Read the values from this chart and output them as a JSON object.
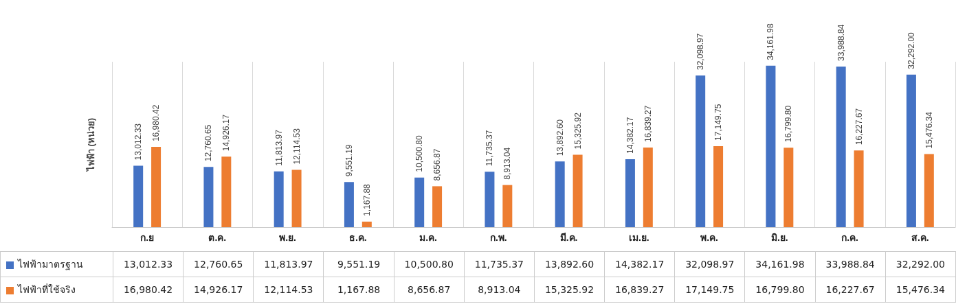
{
  "chart_data": {
    "type": "bar",
    "ylabel": "ไฟฟ้า (หน่วย)",
    "categories": [
      "ก.ย",
      "ต.ค.",
      "พ.ย.",
      "ธ.ค.",
      "ม.ค.",
      "ก.พ.",
      "มี.ค.",
      "เม.ย.",
      "พ.ค.",
      "มิ.ย.",
      "ก.ค.",
      "ส.ค."
    ],
    "series": [
      {
        "name": "ไฟฟ้ามาตรฐาน",
        "color": "#4472c4",
        "values": [
          13012.33,
          12760.65,
          11813.97,
          9551.19,
          10500.8,
          11735.37,
          13892.6,
          14382.17,
          32098.97,
          34161.98,
          33988.84,
          32292.0
        ],
        "value_labels": [
          "13,012.33",
          "12,760.65",
          "11,813.97",
          "9,551.19",
          "10,500.80",
          "11,735.37",
          "13,892.60",
          "14,382.17",
          "32,098.97",
          "34,161.98",
          "33,988.84",
          "32,292.00"
        ]
      },
      {
        "name": "ไฟฟ้าที่ใช้จริง",
        "color": "#ed7d31",
        "values": [
          16980.42,
          14926.17,
          12114.53,
          1167.88,
          8656.87,
          8913.04,
          15325.92,
          16839.27,
          17149.75,
          16799.8,
          16227.67,
          15476.34
        ],
        "value_labels": [
          "16,980.42",
          "14,926.17",
          "12,114.53",
          "1,167.88",
          "8,656.87",
          "8,913.04",
          "15,325.92",
          "16,839.27",
          "17,149.75",
          "16,799.80",
          "16,227.67",
          "15,476.34"
        ]
      }
    ],
    "grid": "x",
    "legend": "bottom"
  }
}
